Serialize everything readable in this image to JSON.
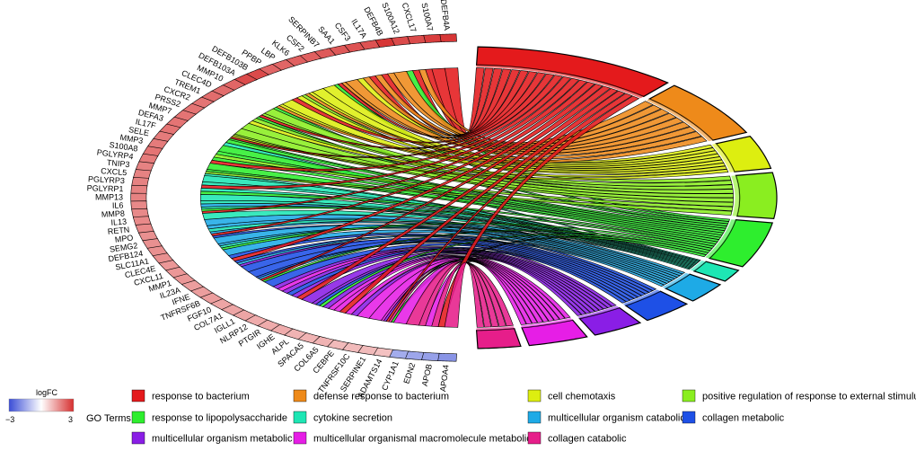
{
  "chart_data": {
    "type": "chord",
    "genes": [
      {
        "name": "DEFB4A",
        "logfc": 2.9
      },
      {
        "name": "S100A7",
        "logfc": 2.8
      },
      {
        "name": "CXCL17",
        "logfc": 2.6
      },
      {
        "name": "S100A12",
        "logfc": 2.6
      },
      {
        "name": "DEFB4B",
        "logfc": 2.9
      },
      {
        "name": "IL17A",
        "logfc": 2.5
      },
      {
        "name": "CSF3",
        "logfc": 2.5
      },
      {
        "name": "SAA1",
        "logfc": 2.4
      },
      {
        "name": "SERPINB7",
        "logfc": 2.4
      },
      {
        "name": "CSF2",
        "logfc": 2.3
      },
      {
        "name": "KLK6",
        "logfc": 2.3
      },
      {
        "name": "LBP",
        "logfc": 2.2
      },
      {
        "name": "PPBP",
        "logfc": 2.2
      },
      {
        "name": "DEFB103B",
        "logfc": 2.6
      },
      {
        "name": "DEFB103A",
        "logfc": 2.6
      },
      {
        "name": "MMP10",
        "logfc": 2.2
      },
      {
        "name": "CLEC4D",
        "logfc": 2.1
      },
      {
        "name": "TREM1",
        "logfc": 2.1
      },
      {
        "name": "CXCR2",
        "logfc": 2.0
      },
      {
        "name": "PRSS2",
        "logfc": 2.0
      },
      {
        "name": "MMP7",
        "logfc": 2.0
      },
      {
        "name": "DEFA3",
        "logfc": 2.0
      },
      {
        "name": "IL17F",
        "logfc": 2.0
      },
      {
        "name": "SELE",
        "logfc": 1.9
      },
      {
        "name": "MMP3",
        "logfc": 1.9
      },
      {
        "name": "S100A8",
        "logfc": 2.0
      },
      {
        "name": "PGLYRP4",
        "logfc": 1.9
      },
      {
        "name": "TNIP3",
        "logfc": 1.8
      },
      {
        "name": "CXCL5",
        "logfc": 1.8
      },
      {
        "name": "PGLYRP3",
        "logfc": 1.8
      },
      {
        "name": "PGLYRP1",
        "logfc": 1.8
      },
      {
        "name": "MMP13",
        "logfc": 1.8
      },
      {
        "name": "IL6",
        "logfc": 1.7
      },
      {
        "name": "MMP8",
        "logfc": 1.7
      },
      {
        "name": "IL13",
        "logfc": 1.7
      },
      {
        "name": "RETN",
        "logfc": 1.7
      },
      {
        "name": "MPO",
        "logfc": 1.6
      },
      {
        "name": "SEMG2",
        "logfc": 1.6
      },
      {
        "name": "DEFB124",
        "logfc": 1.6
      },
      {
        "name": "SLC11A1",
        "logfc": 1.6
      },
      {
        "name": "CLEC4E",
        "logfc": 1.5
      },
      {
        "name": "CXCL11",
        "logfc": 1.5
      },
      {
        "name": "MMP1",
        "logfc": 1.5
      },
      {
        "name": "IL23A",
        "logfc": 1.4
      },
      {
        "name": "IFNE",
        "logfc": 1.4
      },
      {
        "name": "TNFRSF6B",
        "logfc": 1.4
      },
      {
        "name": "FGF10",
        "logfc": 1.3
      },
      {
        "name": "COL7A1",
        "logfc": 1.3
      },
      {
        "name": "IGLL1",
        "logfc": 1.3
      },
      {
        "name": "NLRP12",
        "logfc": 1.2
      },
      {
        "name": "PTGIR",
        "logfc": 1.2
      },
      {
        "name": "IGHE",
        "logfc": 1.2
      },
      {
        "name": "ALPL",
        "logfc": 1.1
      },
      {
        "name": "SPACA5",
        "logfc": 1.1
      },
      {
        "name": "COL6A5",
        "logfc": 1.1
      },
      {
        "name": "CEBPE",
        "logfc": 1.0
      },
      {
        "name": "TNFRSF10C",
        "logfc": 1.0
      },
      {
        "name": "SERPINE1",
        "logfc": 1.0
      },
      {
        "name": "ADAMTS14",
        "logfc": 0.9
      },
      {
        "name": "CYP1A1",
        "logfc": -1.4
      },
      {
        "name": "EDN2",
        "logfc": -1.5
      },
      {
        "name": "APOB",
        "logfc": -1.6
      },
      {
        "name": "APOA4",
        "logfc": -1.8
      }
    ],
    "terms": [
      {
        "name": "response to bacterium",
        "color": "#E41A1C",
        "weight": 24
      },
      {
        "name": "defense response to bacterium",
        "color": "#EE8A1A",
        "weight": 14
      },
      {
        "name": "cell chemotaxis",
        "color": "#DDEE10",
        "weight": 8
      },
      {
        "name": "positive regulation of response to external stimulus",
        "color": "#8AEE20",
        "weight": 11
      },
      {
        "name": "response to lipopolysaccharide",
        "color": "#2EEE2E",
        "weight": 11
      },
      {
        "name": "cytokine secretion",
        "color": "#1EE6B4",
        "weight": 3
      },
      {
        "name": "multicellular organism catabolic",
        "color": "#1EAAE6",
        "weight": 5
      },
      {
        "name": "collagen metabolic",
        "color": "#1E50E6",
        "weight": 6
      },
      {
        "name": "multicellular organism metabolic",
        "color": "#8A1EE6",
        "weight": 6
      },
      {
        "name": "multicellular organismal macromolecule metabolic",
        "color": "#E61EE6",
        "weight": 7
      },
      {
        "name": "collagen catabolic",
        "color": "#E61E8A",
        "weight": 5
      }
    ],
    "legend": {
      "title": "GO Terms",
      "order": [
        0,
        1,
        2,
        3,
        4,
        5,
        6,
        7,
        8,
        9,
        10
      ]
    },
    "colorbar": {
      "title": "logFC",
      "min_label": "−3",
      "max_label": "3",
      "low_color": "#3A4DD6",
      "high_color": "#D62F2F"
    }
  }
}
